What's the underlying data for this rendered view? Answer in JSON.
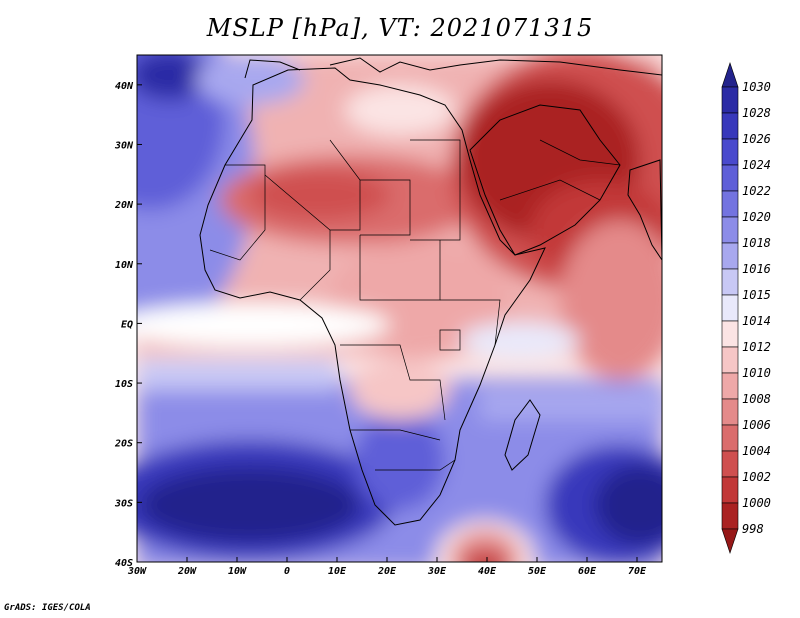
{
  "title": "MSLP [hPa], VT: 2021071315",
  "footer": "GrADS: IGES/COLA",
  "lat_ticks": [
    "40N",
    "30N",
    "20N",
    "10N",
    "EQ",
    "10S",
    "20S",
    "30S",
    "40S"
  ],
  "lon_ticks": [
    "30W",
    "20W",
    "10W",
    "0",
    "10E",
    "20E",
    "30E",
    "40E",
    "50E",
    "60E",
    "70E"
  ],
  "colorbar": {
    "levels": [
      "1030",
      "1028",
      "1026",
      "1024",
      "1022",
      "1020",
      "1018",
      "1016",
      "1015",
      "1014",
      "1012",
      "1010",
      "1008",
      "1006",
      "1004",
      "1002",
      "1000",
      "998"
    ],
    "colors": [
      "#23238c",
      "#2b2ba5",
      "#3838bb",
      "#4a4acd",
      "#5f5fd8",
      "#7373e0",
      "#8c8ce8",
      "#a8a8ef",
      "#c8c8f5",
      "#e9e9fb",
      "#fbe4e4",
      "#f6c6c6",
      "#eea8a8",
      "#e48a8a",
      "#da6c6c",
      "#cf4f4f",
      "#c23838",
      "#aa2222",
      "#961818"
    ]
  },
  "map": {
    "lon_range": [
      -30,
      75
    ],
    "lat_range": [
      -40,
      45
    ]
  }
}
